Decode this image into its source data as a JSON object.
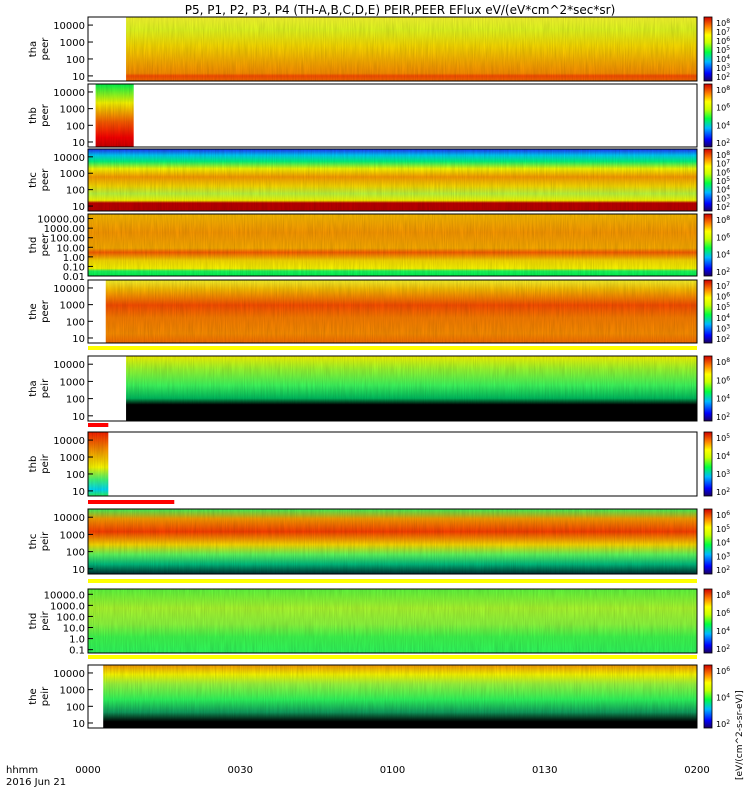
{
  "chart_data": {
    "type": "heatmap",
    "title": "P5, P1, P2, P3, P4 (TH-A,B,C,D,E) PEIR,PEER EFlux eV/(eV*cm^2*sec*sr)",
    "xlabel": "hhmm",
    "date_label": "2016 Jun 21",
    "x_ticks": [
      "0000",
      "0030",
      "0100",
      "0130",
      "0200"
    ],
    "xlim_minutes": [
      0,
      120
    ],
    "colorbar_unit": "[eV/(cm^2-s-sr-eV)]",
    "panels": [
      {
        "probe": "tha",
        "kind": "peer",
        "label1": "tha",
        "label2": "peer",
        "yticks": [
          "10000",
          "1000",
          "100",
          "10"
        ],
        "ylim": [
          5,
          30000
        ],
        "data_start_min": 7.5,
        "data_end_min": 120,
        "cbar_ticks": [
          "10^8",
          "10^7",
          "10^6",
          "10^5",
          "10^4",
          "10^3",
          "10^2"
        ]
      },
      {
        "probe": "thb",
        "kind": "peer",
        "label1": "thb",
        "label2": "peer",
        "yticks": [
          "10000",
          "1000",
          "100",
          "10"
        ],
        "ylim": [
          5,
          30000
        ],
        "data_start_min": 1.5,
        "data_end_min": 9,
        "cbar_ticks": [
          "10^8",
          "10^6",
          "10^4",
          "10^2"
        ]
      },
      {
        "probe": "thc",
        "kind": "peer",
        "label1": "thc",
        "label2": "peer",
        "yticks": [
          "10000",
          "1000",
          "100",
          "10"
        ],
        "ylim": [
          5,
          30000
        ],
        "data_start_min": 0,
        "data_end_min": 120,
        "cbar_ticks": [
          "10^8",
          "10^7",
          "10^6",
          "10^5",
          "10^4",
          "10^3",
          "10^2"
        ]
      },
      {
        "probe": "thd",
        "kind": "peer",
        "label1": "thd",
        "label2": "peer",
        "yticks": [
          "10000.00",
          "1000.00",
          "100.00",
          "10.00",
          "1.00",
          "0.10",
          "0.01"
        ],
        "ylim": [
          0.01,
          30000
        ],
        "data_start_min": 0,
        "data_end_min": 120,
        "cbar_ticks": [
          "10^8",
          "10^6",
          "10^4",
          "10^2"
        ]
      },
      {
        "probe": "the",
        "kind": "peer",
        "label1": "the",
        "label2": "peer",
        "yticks": [
          "10000",
          "1000",
          "100",
          "10"
        ],
        "ylim": [
          5,
          30000
        ],
        "data_start_min": 3.5,
        "data_end_min": 120,
        "cbar_ticks": [
          "10^7",
          "10^6",
          "10^5",
          "10^4",
          "10^3",
          "10^2"
        ]
      },
      {
        "probe": "tha",
        "kind": "peir",
        "label1": "tha",
        "label2": "peir",
        "yticks": [
          "10000",
          "1000",
          "100",
          "10"
        ],
        "ylim": [
          5,
          30000
        ],
        "data_start_min": 7.5,
        "data_end_min": 120,
        "cbar_ticks": [
          "10^8",
          "10^6",
          "10^4",
          "10^2"
        ]
      },
      {
        "probe": "thb",
        "kind": "peir",
        "label1": "thb",
        "label2": "peir",
        "yticks": [
          "10000",
          "1000",
          "100",
          "10"
        ],
        "ylim": [
          5,
          30000
        ],
        "data_start_min": 0,
        "data_end_min": 4,
        "cbar_ticks": [
          "10^5",
          "10^4",
          "10^3",
          "10^2"
        ]
      },
      {
        "probe": "thc",
        "kind": "peir",
        "label1": "thc",
        "label2": "peir",
        "yticks": [
          "10000",
          "1000",
          "100",
          "10"
        ],
        "ylim": [
          5,
          30000
        ],
        "data_start_min": 0,
        "data_end_min": 120,
        "cbar_ticks": [
          "10^6",
          "10^5",
          "10^4",
          "10^3",
          "10^2"
        ]
      },
      {
        "probe": "thd",
        "kind": "peir",
        "label1": "thd",
        "label2": "peir",
        "yticks": [
          "10000.0",
          "1000.0",
          "100.0",
          "10.0",
          "1.0",
          "0.1"
        ],
        "ylim": [
          0.05,
          30000
        ],
        "data_start_min": 0,
        "data_end_min": 120,
        "cbar_ticks": [
          "10^8",
          "10^6",
          "10^4",
          "10^2"
        ]
      },
      {
        "probe": "the",
        "kind": "peir",
        "label1": "the",
        "label2": "peir",
        "yticks": [
          "10000",
          "1000",
          "100",
          "10"
        ],
        "ylim": [
          5,
          30000
        ],
        "data_start_min": 3,
        "data_end_min": 120,
        "cbar_ticks": [
          "10^6",
          "10^4",
          "10^2"
        ]
      }
    ]
  }
}
